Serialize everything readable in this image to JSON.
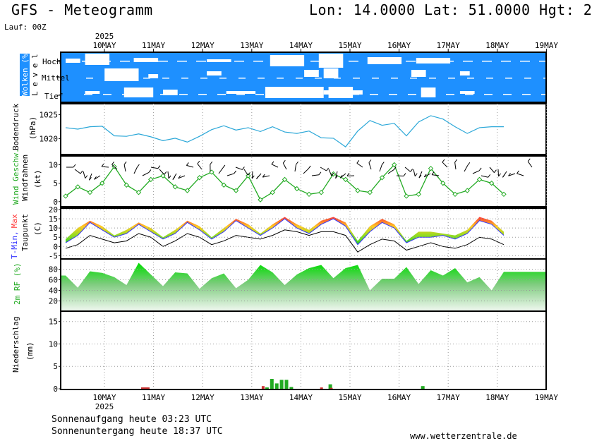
{
  "header": {
    "title": "GFS - Meteogramm",
    "coords": "Lon: 14.0000 Lat: 51.0000 Hgt: 2",
    "run": "Lauf: 00Z",
    "year": "2025"
  },
  "dates": [
    "10MAY",
    "11MAY",
    "12MAY",
    "13MAY",
    "14MAY",
    "15MAY",
    "16MAY",
    "17MAY",
    "18MAY",
    "19MAY"
  ],
  "panels": {
    "clouds": {
      "label_colored": "Wolken (%)",
      "label_level": "L e v e l",
      "levels": [
        "Hoch",
        "Mittel",
        "Tief"
      ]
    },
    "pressure": {
      "label1": "Bodendruck",
      "label2": "(hPa)",
      "ticks": [
        "1025",
        "1020"
      ]
    },
    "wind": {
      "label_green": "Wind Geschw.",
      "label_black": "Windfahnen",
      "unit": "(kt)",
      "ticks": [
        "10",
        "5",
        "0"
      ]
    },
    "temp": {
      "label_tmin": "T-Min,",
      "label_max": "Max",
      "label_taupunkt": "Taupunkt",
      "unit": "(C)",
      "ticks": [
        "20",
        "15",
        "10",
        "5",
        "0",
        "-5"
      ]
    },
    "rh": {
      "label": "2m RF (%)",
      "ticks": [
        "80",
        "60",
        "40",
        "20"
      ]
    },
    "precip": {
      "label1": "Niederschlag",
      "label2": "(mm)",
      "ticks": [
        "15",
        "10",
        "5",
        "0"
      ]
    }
  },
  "footer": {
    "sunrise": "Sonnenaufgang heute 03:23 UTC",
    "sunset": "Sonnenuntergang heute 18:37 UTC",
    "site": "www.wetterzentrale.de"
  },
  "colors": {
    "cloud_bg": "#1e90ff",
    "pressure_line": "#2aa7d8",
    "wind_line": "#22aa22",
    "rh_fill": "#22cc22",
    "tmax": "#ff3333",
    "tmin": "#3333ff",
    "precip_green": "#22aa22",
    "precip_red": "#cc3333"
  },
  "chart_data": [
    {
      "type": "line",
      "name": "Bodendruck (hPa)",
      "x_days": [
        0,
        0.25,
        0.5,
        0.75,
        1,
        1.25,
        1.5,
        1.75,
        2,
        2.25,
        2.5,
        2.75,
        3,
        3.25,
        3.5,
        3.75,
        4,
        4.25,
        4.5,
        4.75,
        5,
        5.25,
        5.5,
        5.75,
        6,
        6.25,
        6.5,
        6.75,
        7,
        7.25,
        7.5,
        7.75,
        8,
        8.25,
        8.5,
        8.75,
        9
      ],
      "values": [
        1022.3,
        1022.0,
        1022.5,
        1022.6,
        1020.6,
        1020.5,
        1021.0,
        1020.4,
        1019.6,
        1020.1,
        1019.3,
        1020.5,
        1021.9,
        1022.7,
        1021.8,
        1022.3,
        1021.5,
        1022.5,
        1021.4,
        1021.1,
        1021.6,
        1020.2,
        1020.1,
        1018.3,
        1021.6,
        1023.8,
        1022.8,
        1023.2,
        1020.6,
        1023.5,
        1024.8,
        1024.1,
        1022.5,
        1021.1,
        1022.3,
        1022.5,
        1022.5
      ],
      "ylim": [
        1017,
        1027
      ]
    },
    {
      "type": "line",
      "name": "Wind Geschw. (kt)",
      "x_days": [
        0,
        0.25,
        0.5,
        0.75,
        1,
        1.25,
        1.5,
        1.75,
        2,
        2.25,
        2.5,
        2.75,
        3,
        3.25,
        3.5,
        3.75,
        4,
        4.25,
        4.5,
        4.75,
        5,
        5.25,
        5.5,
        5.75,
        6,
        6.25,
        6.5,
        6.75,
        7,
        7.25,
        7.5,
        7.75,
        8,
        8.25,
        8.5,
        8.75,
        9
      ],
      "values": [
        1.5,
        4,
        2.5,
        5,
        9.5,
        4.5,
        2.5,
        6,
        7,
        4,
        3,
        6.5,
        8,
        4.5,
        3,
        7,
        0.5,
        2.5,
        6,
        3.5,
        2,
        2.5,
        7.5,
        6,
        3,
        2.5,
        6.5,
        10,
        1.5,
        2,
        9,
        5,
        2,
        3,
        6,
        5,
        2
      ],
      "ylim": [
        -1,
        12
      ]
    },
    {
      "type": "area",
      "name": "T-Min, Max / Taupunkt (C)",
      "x_days": [
        0,
        0.25,
        0.5,
        0.75,
        1,
        1.25,
        1.5,
        1.75,
        2,
        2.25,
        2.5,
        2.75,
        3,
        3.25,
        3.5,
        3.75,
        4,
        4.25,
        4.5,
        4.75,
        5,
        5.25,
        5.5,
        5.75,
        6,
        6.25,
        6.5,
        6.75,
        7,
        7.25,
        7.5,
        7.75,
        8,
        8.25,
        8.5,
        8.75,
        9
      ],
      "tmax": [
        4,
        10,
        14,
        11,
        6,
        9,
        13,
        10,
        5,
        9,
        14,
        11,
        5,
        10,
        15,
        12,
        7,
        12,
        16,
        12,
        9,
        14,
        16,
        13,
        3,
        11,
        15,
        12,
        3,
        8,
        8,
        7,
        6,
        9,
        16,
        14,
        8
      ],
      "tmin": [
        2,
        6,
        13,
        9,
        5,
        7,
        12,
        8,
        4,
        7,
        13,
        9,
        4,
        8,
        14,
        10,
        6,
        10,
        15,
        10,
        7,
        12,
        15,
        11,
        1,
        8,
        13,
        10,
        2,
        5,
        5,
        6,
        4,
        7,
        14,
        12,
        6
      ],
      "taupunkt": [
        -1,
        1,
        6,
        4,
        2,
        3,
        7,
        5,
        0,
        3,
        7,
        5,
        1,
        3,
        6,
        5,
        4,
        6,
        9,
        8,
        6,
        8,
        8,
        6,
        -3,
        1,
        4,
        3,
        -2,
        0,
        2,
        0,
        -1,
        1,
        5,
        4,
        1
      ],
      "ylim": [
        -6,
        20
      ]
    },
    {
      "type": "area",
      "name": "2m RF (%)",
      "x_days": [
        0,
        0.25,
        0.5,
        0.75,
        1,
        1.25,
        1.5,
        1.75,
        2,
        2.25,
        2.5,
        2.75,
        3,
        3.25,
        3.5,
        3.75,
        4,
        4.25,
        4.5,
        4.75,
        5,
        5.25,
        5.5,
        5.75,
        6,
        6.25,
        6.5,
        6.75,
        7,
        7.25,
        7.5,
        7.75,
        8,
        8.25,
        8.5,
        8.75,
        9
      ],
      "values": [
        68,
        45,
        76,
        73,
        65,
        50,
        92,
        70,
        48,
        74,
        72,
        43,
        63,
        72,
        44,
        60,
        88,
        74,
        50,
        70,
        82,
        88,
        63,
        82,
        88,
        40,
        62,
        62,
        84,
        52,
        78,
        68,
        82,
        55,
        65,
        40,
        75
      ],
      "ylim": [
        2,
        98
      ]
    },
    {
      "type": "bar",
      "name": "Niederschlag (mm)",
      "x_days": [
        4.1,
        4.2,
        4.3,
        4.4,
        4.5,
        4.6,
        5.3,
        5.4,
        5.5,
        6.2,
        6.8,
        7.3
      ],
      "green": [
        0.3,
        2.2,
        1.2,
        2.0,
        2.0,
        0.4,
        0,
        1.0,
        0,
        0,
        0,
        0.6
      ],
      "red": [
        0.6,
        0,
        0,
        0,
        0,
        0,
        0.3,
        0,
        0.2,
        0,
        0,
        0
      ],
      "ylim": [
        0,
        17
      ]
    }
  ]
}
